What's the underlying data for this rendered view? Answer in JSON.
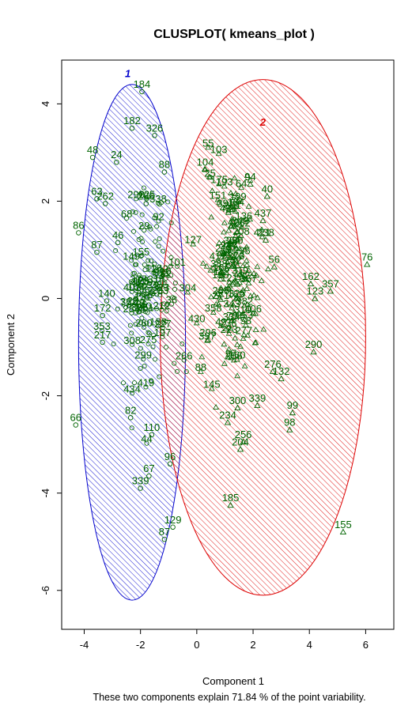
{
  "chart_data": {
    "type": "scatter",
    "title": "CLUSPLOT( kmeans_plot )",
    "xlabel": "Component 1",
    "ylabel": "Component 2",
    "caption": "These two components explain 71.84 % of the point variability.",
    "xlim": [
      -4.8,
      7.0
    ],
    "ylim": [
      -6.8,
      4.9
    ],
    "xticks": [
      -4,
      -2,
      0,
      2,
      4,
      6
    ],
    "yticks": [
      -6,
      -4,
      -2,
      0,
      2,
      4
    ],
    "grid": false,
    "colors": {
      "cluster1": "#0000cc",
      "cluster2": "#dd0000",
      "points": "#006400"
    },
    "clusters": [
      {
        "label": "1",
        "cx": -2.3,
        "cy": -0.9,
        "rx": 1.9,
        "ry": 5.3,
        "angle": 0,
        "color": "#0000cc",
        "label_x": -2.45,
        "label_y": 4.55
      },
      {
        "label": "2",
        "cx": 2.35,
        "cy": -0.8,
        "rx": 3.65,
        "ry": 5.3,
        "angle": 0,
        "color": "#dd0000",
        "label_x": 2.35,
        "label_y": 3.55
      }
    ],
    "labeled_points": [
      {
        "label": "184",
        "x": -1.95,
        "y": 4.25,
        "cluster": 1
      },
      {
        "label": "182",
        "x": -2.3,
        "y": 3.5,
        "cluster": 1
      },
      {
        "label": "326",
        "x": -1.5,
        "y": 3.35,
        "cluster": 1
      },
      {
        "label": "48",
        "x": -3.7,
        "y": 2.9,
        "cluster": 1
      },
      {
        "label": "24",
        "x": -2.85,
        "y": 2.8,
        "cluster": 1
      },
      {
        "label": "88",
        "x": -1.15,
        "y": 2.6,
        "cluster": 1
      },
      {
        "label": "63",
        "x": -3.55,
        "y": 2.05,
        "cluster": 1
      },
      {
        "label": "262",
        "x": -3.25,
        "y": 1.95,
        "cluster": 1
      },
      {
        "label": "266",
        "x": -1.8,
        "y": 1.95,
        "cluster": 1
      },
      {
        "label": "86",
        "x": -4.2,
        "y": 1.35,
        "cluster": 1
      },
      {
        "label": "87",
        "x": -3.55,
        "y": 0.95,
        "cluster": 1
      },
      {
        "label": "46",
        "x": -2.8,
        "y": 1.15,
        "cluster": 1
      },
      {
        "label": "140",
        "x": -3.2,
        "y": -0.05,
        "cluster": 1
      },
      {
        "label": "172",
        "x": -3.35,
        "y": -0.35,
        "cluster": 1
      },
      {
        "label": "217",
        "x": -3.35,
        "y": -0.9,
        "cluster": 1
      },
      {
        "label": "82",
        "x": -2.35,
        "y": -2.45,
        "cluster": 1
      },
      {
        "label": "66",
        "x": -4.3,
        "y": -2.6,
        "cluster": 1
      },
      {
        "label": "110",
        "x": -1.6,
        "y": -2.8,
        "cluster": 1
      },
      {
        "label": "96",
        "x": -0.95,
        "y": -3.4,
        "cluster": 1
      },
      {
        "label": "67",
        "x": -1.7,
        "y": -3.65,
        "cluster": 1
      },
      {
        "label": "339",
        "x": -2.0,
        "y": -3.9,
        "cluster": 1
      },
      {
        "label": "129",
        "x": -0.85,
        "y": -4.7,
        "cluster": 1
      },
      {
        "label": "87",
        "x": -1.15,
        "y": -4.95,
        "cluster": 1
      },
      {
        "label": "104",
        "x": 0.3,
        "y": 2.65,
        "cluster": 2
      },
      {
        "label": "94",
        "x": 1.9,
        "y": 2.35,
        "cluster": 2
      },
      {
        "label": "40",
        "x": 2.5,
        "y": 2.1,
        "cluster": 2
      },
      {
        "label": "437",
        "x": 2.35,
        "y": 1.6,
        "cluster": 2
      },
      {
        "label": "238",
        "x": 2.45,
        "y": 1.2,
        "cluster": 2
      },
      {
        "label": "56",
        "x": 2.75,
        "y": 0.65,
        "cluster": 2
      },
      {
        "label": "76",
        "x": 6.05,
        "y": 0.7,
        "cluster": 2
      },
      {
        "label": "162",
        "x": 4.05,
        "y": 0.3,
        "cluster": 2
      },
      {
        "label": "357",
        "x": 4.75,
        "y": 0.15,
        "cluster": 2
      },
      {
        "label": "123",
        "x": 4.2,
        "y": 0.0,
        "cluster": 2
      },
      {
        "label": "296",
        "x": 0.4,
        "y": -0.85,
        "cluster": 2
      },
      {
        "label": "290",
        "x": 4.15,
        "y": -1.1,
        "cluster": 2
      },
      {
        "label": "276",
        "x": 2.7,
        "y": -1.5,
        "cluster": 2
      },
      {
        "label": "132",
        "x": 3.0,
        "y": -1.65,
        "cluster": 2
      },
      {
        "label": "300",
        "x": 1.45,
        "y": -2.25,
        "cluster": 2
      },
      {
        "label": "339",
        "x": 2.15,
        "y": -2.2,
        "cluster": 2
      },
      {
        "label": "99",
        "x": 3.4,
        "y": -2.35,
        "cluster": 2
      },
      {
        "label": "234",
        "x": 1.1,
        "y": -2.55,
        "cluster": 2
      },
      {
        "label": "98",
        "x": 3.3,
        "y": -2.7,
        "cluster": 2
      },
      {
        "label": "256",
        "x": 1.65,
        "y": -2.95,
        "cluster": 2
      },
      {
        "label": "204",
        "x": 1.55,
        "y": -3.1,
        "cluster": 2
      },
      {
        "label": "185",
        "x": 1.2,
        "y": -4.25,
        "cluster": 2
      },
      {
        "label": "155",
        "x": 5.2,
        "y": -4.8,
        "cluster": 2
      }
    ]
  }
}
